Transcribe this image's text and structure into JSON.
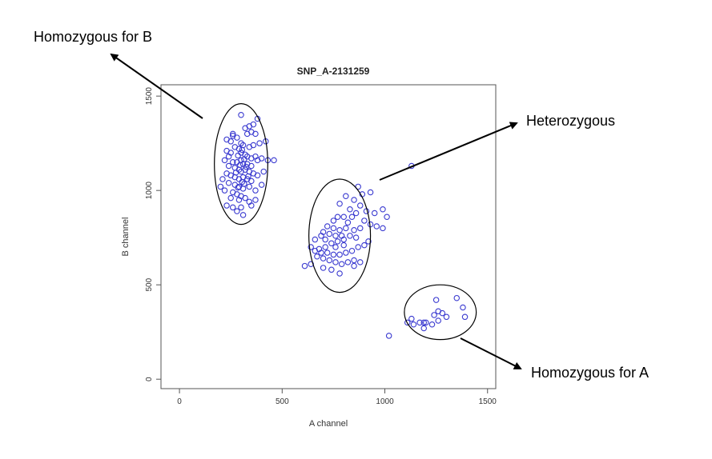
{
  "chart_data": {
    "type": "scatter",
    "title": "SNP_A-2131259",
    "xlabel": "A channel",
    "ylabel": "B channel",
    "xlim": [
      -90,
      1540
    ],
    "ylim": [
      -50,
      1560
    ],
    "x_ticks": [
      0,
      500,
      1000,
      1500
    ],
    "y_ticks": [
      0,
      500,
      1000,
      1500
    ],
    "grid": false,
    "point_color": "#3a3ad0",
    "clusters": [
      {
        "label": "Homozygous for B",
        "cx": 300,
        "cy": 1140,
        "rx": 130,
        "ry": 320
      },
      {
        "label": "Heterozygous",
        "cx": 780,
        "cy": 760,
        "rx": 150,
        "ry": 300
      },
      {
        "label": "Homozygous for A",
        "cx": 1270,
        "cy": 355,
        "rx": 175,
        "ry": 145
      }
    ],
    "points": [
      [
        300,
        1400
      ],
      [
        380,
        1380
      ],
      [
        360,
        1350
      ],
      [
        340,
        1340
      ],
      [
        320,
        1330
      ],
      [
        260,
        1290
      ],
      [
        280,
        1280
      ],
      [
        330,
        1300
      ],
      [
        350,
        1310
      ],
      [
        370,
        1300
      ],
      [
        230,
        1270
      ],
      [
        250,
        1260
      ],
      [
        300,
        1250
      ],
      [
        310,
        1240
      ],
      [
        340,
        1230
      ],
      [
        360,
        1240
      ],
      [
        390,
        1250
      ],
      [
        420,
        1260
      ],
      [
        270,
        1230
      ],
      [
        290,
        1220
      ],
      [
        230,
        1210
      ],
      [
        250,
        1200
      ],
      [
        300,
        1200
      ],
      [
        320,
        1190
      ],
      [
        330,
        1180
      ],
      [
        350,
        1170
      ],
      [
        370,
        1180
      ],
      [
        380,
        1160
      ],
      [
        400,
        1170
      ],
      [
        430,
        1160
      ],
      [
        460,
        1160
      ],
      [
        220,
        1160
      ],
      [
        260,
        1150
      ],
      [
        280,
        1150
      ],
      [
        300,
        1160
      ],
      [
        310,
        1140
      ],
      [
        330,
        1140
      ],
      [
        350,
        1130
      ],
      [
        240,
        1130
      ],
      [
        270,
        1120
      ],
      [
        290,
        1110
      ],
      [
        300,
        1100
      ],
      [
        320,
        1110
      ],
      [
        340,
        1100
      ],
      [
        360,
        1090
      ],
      [
        380,
        1080
      ],
      [
        230,
        1090
      ],
      [
        250,
        1080
      ],
      [
        270,
        1070
      ],
      [
        290,
        1060
      ],
      [
        310,
        1070
      ],
      [
        330,
        1060
      ],
      [
        350,
        1050
      ],
      [
        210,
        1060
      ],
      [
        240,
        1040
      ],
      [
        270,
        1030
      ],
      [
        290,
        1020
      ],
      [
        310,
        1010
      ],
      [
        340,
        1020
      ],
      [
        370,
        1000
      ],
      [
        200,
        1020
      ],
      [
        220,
        1000
      ],
      [
        260,
        990
      ],
      [
        280,
        980
      ],
      [
        300,
        970
      ],
      [
        320,
        960
      ],
      [
        250,
        960
      ],
      [
        290,
        950
      ],
      [
        340,
        940
      ],
      [
        230,
        920
      ],
      [
        260,
        910
      ],
      [
        300,
        910
      ],
      [
        280,
        890
      ],
      [
        310,
        870
      ],
      [
        350,
        920
      ],
      [
        370,
        950
      ],
      [
        400,
        1030
      ],
      [
        410,
        1100
      ],
      [
        240,
        1180
      ],
      [
        260,
        1300
      ],
      [
        285,
        1185
      ],
      [
        305,
        1215
      ],
      [
        315,
        1165
      ],
      [
        325,
        1125
      ],
      [
        295,
        1135
      ],
      [
        275,
        1095
      ],
      [
        305,
        1045
      ],
      [
        285,
        1015
      ],
      [
        315,
        1035
      ],
      [
        335,
        1075
      ],
      [
        1130,
        1130
      ],
      [
        870,
        1020
      ],
      [
        930,
        990
      ],
      [
        890,
        980
      ],
      [
        810,
        970
      ],
      [
        850,
        950
      ],
      [
        780,
        930
      ],
      [
        880,
        920
      ],
      [
        910,
        890
      ],
      [
        950,
        880
      ],
      [
        990,
        900
      ],
      [
        1010,
        860
      ],
      [
        830,
        900
      ],
      [
        860,
        880
      ],
      [
        840,
        860
      ],
      [
        800,
        860
      ],
      [
        770,
        860
      ],
      [
        750,
        840
      ],
      [
        820,
        830
      ],
      [
        900,
        840
      ],
      [
        930,
        820
      ],
      [
        960,
        810
      ],
      [
        990,
        800
      ],
      [
        880,
        800
      ],
      [
        850,
        790
      ],
      [
        810,
        800
      ],
      [
        780,
        790
      ],
      [
        750,
        800
      ],
      [
        720,
        810
      ],
      [
        700,
        780
      ],
      [
        730,
        770
      ],
      [
        760,
        760
      ],
      [
        790,
        760
      ],
      [
        830,
        760
      ],
      [
        860,
        750
      ],
      [
        800,
        740
      ],
      [
        770,
        730
      ],
      [
        740,
        720
      ],
      [
        710,
        700
      ],
      [
        680,
        690
      ],
      [
        660,
        680
      ],
      [
        690,
        670
      ],
      [
        720,
        670
      ],
      [
        750,
        660
      ],
      [
        780,
        660
      ],
      [
        810,
        670
      ],
      [
        840,
        680
      ],
      [
        870,
        700
      ],
      [
        900,
        710
      ],
      [
        920,
        730
      ],
      [
        670,
        650
      ],
      [
        700,
        640
      ],
      [
        730,
        630
      ],
      [
        760,
        620
      ],
      [
        790,
        610
      ],
      [
        820,
        620
      ],
      [
        850,
        630
      ],
      [
        640,
        610
      ],
      [
        610,
        600
      ],
      [
        700,
        590
      ],
      [
        740,
        580
      ],
      [
        780,
        560
      ],
      [
        850,
        600
      ],
      [
        880,
        620
      ],
      [
        640,
        700
      ],
      [
        660,
        740
      ],
      [
        690,
        760
      ],
      [
        710,
        740
      ],
      [
        760,
        700
      ],
      [
        800,
        710
      ],
      [
        1020,
        230
      ],
      [
        1110,
        300
      ],
      [
        1130,
        320
      ],
      [
        1140,
        290
      ],
      [
        1170,
        300
      ],
      [
        1190,
        270
      ],
      [
        1200,
        300
      ],
      [
        1230,
        290
      ],
      [
        1240,
        340
      ],
      [
        1260,
        360
      ],
      [
        1250,
        420
      ],
      [
        1280,
        350
      ],
      [
        1300,
        330
      ],
      [
        1350,
        430
      ],
      [
        1380,
        380
      ],
      [
        1390,
        330
      ],
      [
        1190,
        300
      ],
      [
        1260,
        310
      ]
    ]
  }
}
